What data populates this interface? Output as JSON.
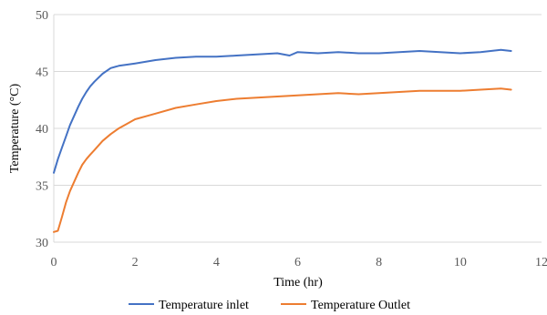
{
  "chart_data": {
    "type": "line",
    "title": "",
    "xlabel": "Time (hr)",
    "ylabel": "Temperature (°C)",
    "xlim": [
      0,
      12
    ],
    "ylim": [
      30,
      50
    ],
    "x_ticks": [
      0,
      2,
      4,
      6,
      8,
      10,
      12
    ],
    "y_ticks": [
      30,
      35,
      40,
      45,
      50
    ],
    "x_tick_labels": [
      "0",
      "2",
      "4",
      "6",
      "8",
      "10",
      "12"
    ],
    "y_tick_labels": [
      "30",
      "35",
      "40",
      "45",
      "50"
    ],
    "grid": "horizontal",
    "legend": "bottom",
    "series": [
      {
        "name": "Temperature inlet",
        "color": "#4472c4",
        "x": [
          0,
          0.1,
          0.2,
          0.3,
          0.4,
          0.5,
          0.6,
          0.7,
          0.8,
          0.9,
          1.0,
          1.2,
          1.4,
          1.6,
          1.8,
          2.0,
          2.5,
          3.0,
          3.5,
          4.0,
          4.5,
          5.0,
          5.5,
          5.8,
          6.0,
          6.5,
          7.0,
          7.5,
          8.0,
          8.5,
          9.0,
          9.5,
          10.0,
          10.5,
          11.0,
          11.25
        ],
        "y": [
          36.1,
          37.3,
          38.3,
          39.3,
          40.3,
          41.1,
          41.9,
          42.6,
          43.2,
          43.7,
          44.1,
          44.8,
          45.3,
          45.5,
          45.6,
          45.7,
          46.0,
          46.2,
          46.3,
          46.3,
          46.4,
          46.5,
          46.6,
          46.4,
          46.7,
          46.6,
          46.7,
          46.6,
          46.6,
          46.7,
          46.8,
          46.7,
          46.6,
          46.7,
          46.9,
          46.8
        ]
      },
      {
        "name": "Temperature Outlet",
        "color": "#ed7d31",
        "x": [
          0,
          0.1,
          0.2,
          0.3,
          0.4,
          0.5,
          0.6,
          0.7,
          0.8,
          0.9,
          1.0,
          1.2,
          1.4,
          1.6,
          1.8,
          2.0,
          2.5,
          3.0,
          3.5,
          4.0,
          4.5,
          5.0,
          5.5,
          6.0,
          6.5,
          7.0,
          7.5,
          8.0,
          8.5,
          9.0,
          9.5,
          10.0,
          10.5,
          11.0,
          11.25
        ],
        "y": [
          30.9,
          31.0,
          32.2,
          33.5,
          34.5,
          35.3,
          36.1,
          36.8,
          37.3,
          37.7,
          38.1,
          38.9,
          39.5,
          40.0,
          40.4,
          40.8,
          41.3,
          41.8,
          42.1,
          42.4,
          42.6,
          42.7,
          42.8,
          42.9,
          43.0,
          43.1,
          43.0,
          43.1,
          43.2,
          43.3,
          43.3,
          43.3,
          43.4,
          43.5,
          43.4
        ]
      }
    ]
  }
}
